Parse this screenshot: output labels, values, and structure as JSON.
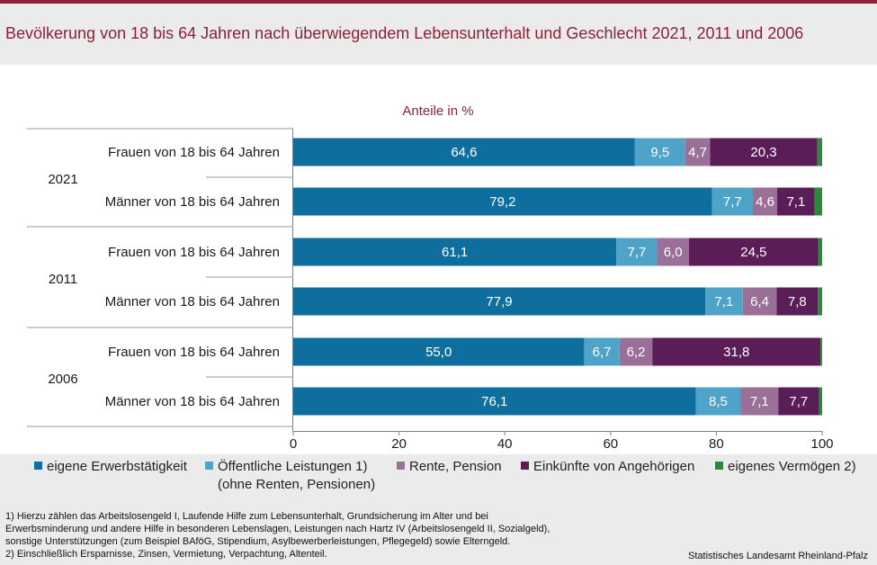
{
  "title": "Bevölkerung von 18 bis 64 Jahren nach überwiegendem Lebensunterhalt und Geschlecht 2021, 2011 und 2006",
  "chart_data": {
    "type": "bar",
    "orientation": "horizontal",
    "stacked": true,
    "subtitle": "Anteile in %",
    "xlim": [
      0,
      100
    ],
    "xticks": [
      0,
      20,
      40,
      60,
      80,
      100
    ],
    "groups": [
      {
        "year": "2021",
        "rows": [
          {
            "label": "Frauen von 18 bis 64 Jahren",
            "values": [
              64.6,
              9.5,
              4.7,
              20.3,
              0.9
            ],
            "labels": [
              "64,6",
              "9,5",
              "4,7",
              "20,3",
              ""
            ]
          },
          {
            "label": "Männer von 18 bis 64 Jahren",
            "values": [
              79.2,
              7.7,
              4.6,
              7.1,
              1.4
            ],
            "labels": [
              "79,2",
              "7,7",
              "4,6",
              "7,1",
              ""
            ]
          }
        ]
      },
      {
        "year": "2011",
        "rows": [
          {
            "label": "Frauen von 18 bis 64 Jahren",
            "values": [
              61.1,
              7.7,
              6.0,
              24.5,
              0.7
            ],
            "labels": [
              "61,1",
              "7,7",
              "6,0",
              "24,5",
              ""
            ]
          },
          {
            "label": "Männer von 18 bis 64 Jahren",
            "values": [
              77.9,
              7.1,
              6.4,
              7.8,
              0.8
            ],
            "labels": [
              "77,9",
              "7,1",
              "6,4",
              "7,8",
              ""
            ]
          }
        ]
      },
      {
        "year": "2006",
        "rows": [
          {
            "label": "Frauen von 18 bis 64 Jahren",
            "values": [
              55.0,
              6.7,
              6.2,
              31.8,
              0.3
            ],
            "labels": [
              "55,0",
              "6,7",
              "6,2",
              "31,8",
              ""
            ]
          },
          {
            "label": "Männer von 18 bis 64 Jahren",
            "values": [
              76.1,
              8.5,
              7.1,
              7.7,
              0.6
            ],
            "labels": [
              "76,1",
              "8,5",
              "7,1",
              "7,7",
              ""
            ]
          }
        ]
      }
    ],
    "series": [
      {
        "name": "eigene Erwerbstätigkeit",
        "color": "#0e6f9e"
      },
      {
        "name": "Öffentliche Leistungen 1)",
        "name_line2": "(ohne Renten, Pensionen)",
        "color": "#4fa3c9"
      },
      {
        "name": "Rente, Pension",
        "color": "#9b7098"
      },
      {
        "name": "Einkünfte von Angehörigen",
        "color": "#5b1d58"
      },
      {
        "name": "eigenes Vermögen 2)",
        "color": "#2a8a3a"
      }
    ]
  },
  "footnotes": [
    "1) Hierzu zählen das Arbeitslosengeld I, Laufende  Hilfe zum Lebensunterhalt,  Grundsicherung  im Alter und bei",
    "Erwerbsminderung  und andere Hilfe in besonderen  Lebenslagen,  Leistungen nach Hartz IV (Arbeitslosengeld  II, Sozialgeld),",
    "sonstige Unterstützungen  (zum Beispiel BAföG, Stipendium, Asylbewerberleistungen,  Pflegegeld)  sowie Elterngeld.",
    "2) Einschließlich Ersparnisse, Zinsen, Vermietung, Verpachtung, Altenteil."
  ],
  "source": "Statistisches Landesamt Rheinland-Pfalz"
}
